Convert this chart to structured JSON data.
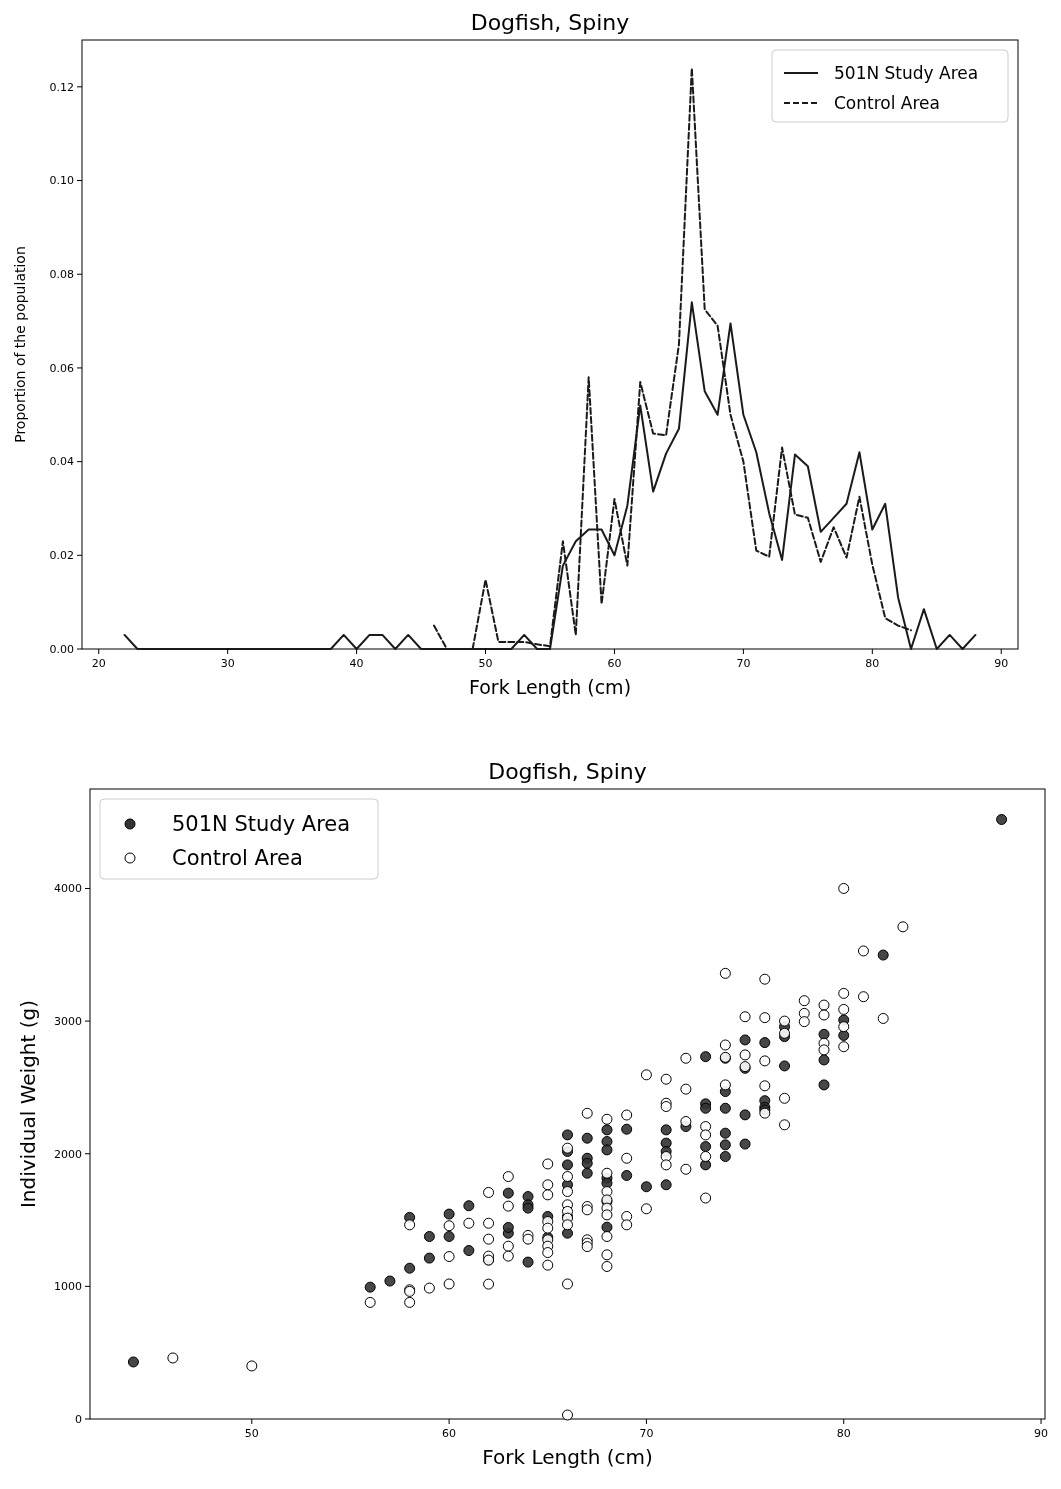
{
  "chart_data": [
    {
      "type": "line",
      "title": "Dogfish, Spiny",
      "xlabel": "Fork Length (cm)",
      "ylabel": "Proportion of the population",
      "xlim": [
        18.7,
        91.3
      ],
      "ylim": [
        0,
        0.13
      ],
      "xticks": [
        20,
        30,
        40,
        50,
        60,
        70,
        80,
        90
      ],
      "yticks": [
        {
          "value": 0,
          "label": "0.00"
        },
        {
          "value": 0.02,
          "label": "0.02"
        },
        {
          "value": 0.04,
          "label": "0.04"
        },
        {
          "value": 0.06,
          "label": "0.06"
        },
        {
          "value": 0.08,
          "label": "0.08"
        },
        {
          "value": 0.1,
          "label": "0.10"
        },
        {
          "value": 0.12,
          "label": "0.12"
        }
      ],
      "legend": "top right",
      "marker": "none",
      "series": [
        {
          "name": "501N Study Area",
          "color": "#1a1a1a",
          "line_style": "solid",
          "x": [
            22,
            23,
            24,
            25,
            26,
            27,
            28,
            29,
            30,
            31,
            32,
            33,
            34,
            35,
            36,
            37,
            38,
            39,
            40,
            41,
            42,
            43,
            44,
            45,
            46,
            47,
            48,
            49,
            50,
            51,
            52,
            53,
            54,
            55,
            56,
            57,
            58,
            59,
            60,
            61,
            62,
            63,
            64,
            65,
            66,
            67,
            68,
            69,
            70,
            71,
            72,
            73,
            74,
            75,
            76,
            77,
            78,
            79,
            80,
            81,
            82,
            83,
            84,
            85,
            86,
            87,
            88
          ],
          "values": [
            0.003,
            0,
            0,
            0,
            0,
            0,
            0,
            0,
            0,
            0,
            0,
            0,
            0,
            0,
            0,
            0,
            0,
            0.003,
            0,
            0.003,
            0.003,
            0,
            0.003,
            0,
            0,
            0,
            0,
            0,
            0,
            0,
            0,
            0.003,
            0,
            0,
            0.0178,
            0.023,
            0.0255,
            0.0255,
            0.02,
            0.0306,
            0.052,
            0.0336,
            0.0417,
            0.047,
            0.074,
            0.055,
            0.05,
            0.0695,
            0.05,
            0.042,
            0.029,
            0.019,
            0.0415,
            0.039,
            0.025,
            0.028,
            0.031,
            0.042,
            0.0255,
            0.031,
            0.011,
            0,
            0.0085,
            0,
            0.003,
            0,
            0.003
          ]
        },
        {
          "name": "Control Area",
          "color": "#1a1a1a",
          "line_style": "dashed",
          "x": [
            46,
            47,
            48,
            49,
            50,
            51,
            52,
            53,
            54,
            55,
            56,
            57,
            58,
            59,
            60,
            61,
            62,
            63,
            64,
            65,
            66,
            67,
            68,
            69,
            70,
            71,
            72,
            73,
            74,
            75,
            76,
            77,
            78,
            79,
            80,
            81,
            82,
            83
          ],
          "values": [
            0.005,
            0,
            null,
            0,
            0.0148,
            0.0015,
            0.0015,
            0.0015,
            0.001,
            0.0006,
            0.023,
            0.003,
            0.058,
            0.0096,
            0.032,
            0.0178,
            0.057,
            0.046,
            0.0456,
            0.065,
            0.124,
            0.0725,
            0.069,
            0.05,
            0.04,
            0.021,
            0.0197,
            0.043,
            0.0287,
            0.028,
            0.0186,
            0.026,
            0.0195,
            0.0325,
            0.018,
            0.0066,
            0.005,
            0.004
          ]
        }
      ]
    },
    {
      "type": "scatter",
      "title": "Dogfish, Spiny",
      "xlabel": "Fork Length (cm)",
      "ylabel": "Individual Weight (g)",
      "xlim": [
        41.8,
        90.2
      ],
      "ylim": [
        0,
        4750
      ],
      "xticks": [
        50,
        60,
        70,
        80,
        90
      ],
      "yticks": [
        0,
        1000,
        2000,
        3000,
        4000
      ],
      "legend": "top left",
      "marker": "circle",
      "series": [
        {
          "name": "501N Study Area",
          "color": "#333333",
          "x": [
            44,
            56,
            57,
            58,
            58,
            59,
            59,
            60,
            60,
            61,
            61,
            62,
            63,
            63,
            63,
            64,
            64,
            64,
            64,
            65,
            65,
            66,
            66,
            66,
            66,
            66,
            66,
            67,
            67,
            67,
            67,
            68,
            68,
            68,
            68,
            68,
            68,
            68,
            69,
            69,
            70,
            71,
            71,
            71,
            71,
            72,
            73,
            73,
            73,
            73,
            73,
            74,
            74,
            74,
            74,
            74,
            74,
            75,
            75,
            75,
            75,
            76,
            76,
            76,
            76,
            77,
            77,
            77,
            79,
            79,
            79,
            80,
            80,
            82,
            88
          ],
          "values": [
            430,
            994,
            1040,
            1520,
            1137,
            1376,
            1213,
            1545,
            1376,
            1608,
            1270,
            1200,
            1703,
            1401,
            1444,
            1677,
            1615,
            1590,
            1183,
            1527,
            1370,
            2142,
            2017,
            1916,
            1766,
            1527,
            1401,
            2117,
            1966,
            1928,
            1853,
            2180,
            2092,
            2029,
            1816,
            1778,
            1640,
            1446,
            2185,
            1836,
            1751,
            2180,
            2080,
            2017,
            1766,
            2205,
            2732,
            2376,
            2343,
            2054,
            1916,
            2720,
            2469,
            2343,
            2155,
            2067,
            1979,
            2858,
            2644,
            2293,
            2073,
            2838,
            2400,
            2350,
            2330,
            2958,
            2883,
            2662,
            2900,
            2707,
            2519,
            3008,
            2892,
            3498,
            4520
          ]
        },
        {
          "name": "Control Area",
          "color": "#ffffff",
          "x": [
            46,
            50,
            56,
            58,
            58,
            58,
            58,
            59,
            60,
            60,
            60,
            61,
            62,
            62,
            62,
            62,
            62,
            62,
            63,
            63,
            63,
            63,
            64,
            64,
            65,
            65,
            65,
            65,
            65,
            65,
            65,
            65,
            65,
            66,
            66,
            66,
            66,
            66,
            66,
            66,
            66,
            66,
            67,
            67,
            67,
            67,
            67,
            67,
            68,
            68,
            68,
            68,
            68,
            68,
            68,
            68,
            68,
            69,
            69,
            69,
            69,
            70,
            70,
            71,
            71,
            71,
            71,
            71,
            72,
            72,
            72,
            72,
            73,
            73,
            73,
            73,
            74,
            74,
            74,
            74,
            75,
            75,
            75,
            76,
            76,
            76,
            76,
            76,
            77,
            77,
            77,
            77,
            78,
            78,
            78,
            79,
            79,
            79,
            79,
            80,
            80,
            80,
            80,
            80,
            81,
            81,
            82,
            83
          ],
          "values": [
            460,
            400,
            879,
            1464,
            974,
            962,
            879,
            987,
            1457,
            1225,
            1018,
            1476,
            1708,
            1476,
            1356,
            1228,
            1198,
            1017,
            1828,
            1605,
            1303,
            1228,
            1384,
            1356,
            1923,
            1766,
            1690,
            1489,
            1439,
            1351,
            1303,
            1255,
            1160,
            2042,
            1828,
            1715,
            1615,
            1565,
            1514,
            1464,
            1018,
            30,
            2305,
            1602,
            1577,
            1351,
            1326,
            1300,
            2260,
            1853,
            1715,
            1652,
            1590,
            1539,
            1376,
            1238,
            1150,
            2292,
            1966,
            1527,
            1464,
            2595,
            1585,
            2562,
            2381,
            2356,
            1979,
            1916,
            2720,
            2487,
            2243,
            1883,
            2205,
            2142,
            1979,
            1666,
            3360,
            2820,
            2727,
            2519,
            3033,
            2745,
            2657,
            3316,
            3026,
            2700,
            2512,
            2306,
            3000,
            2908,
            2418,
            2218,
            3154,
            3058,
            2996,
            3121,
            3046,
            2833,
            2783,
            4000,
            3209,
            3088,
            2958,
            2807,
            3529,
            3184,
            3020,
            3711
          ]
        }
      ]
    }
  ]
}
